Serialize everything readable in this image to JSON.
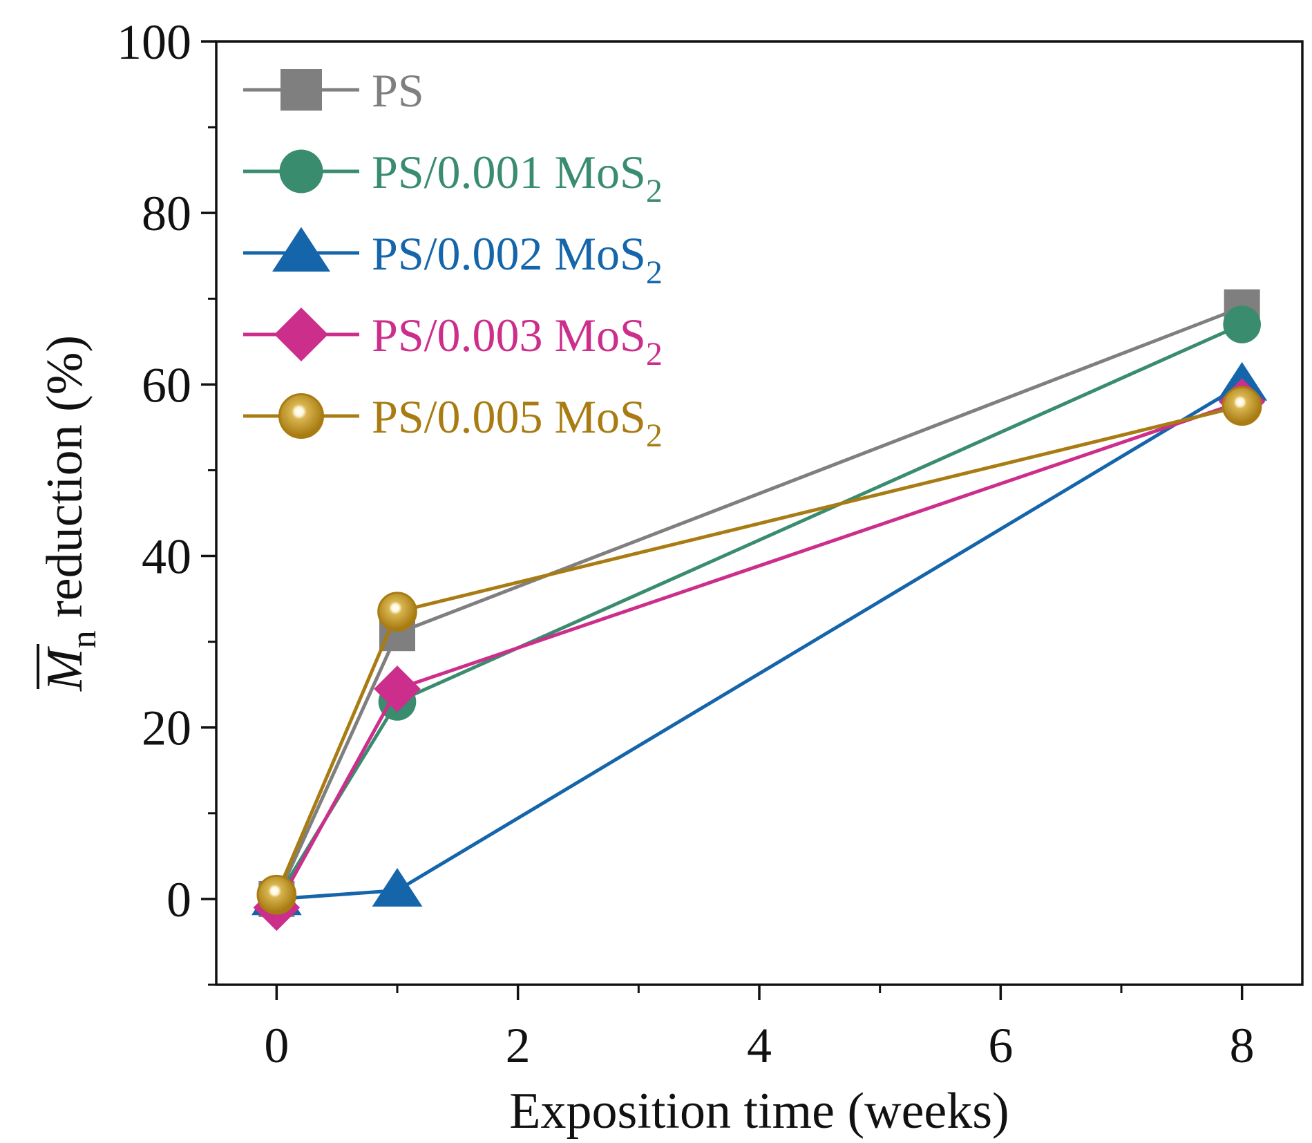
{
  "chart_data": {
    "type": "line",
    "title": "",
    "xlabel": "Exposition time (weeks)",
    "ylabel": {
      "symbol": "M",
      "subscript": "n",
      "suffix": " reduction (%)"
    },
    "xlim": [
      -0.5,
      8.5
    ],
    "ylim": [
      -10,
      100
    ],
    "x_ticks": [
      0,
      2,
      4,
      6,
      8
    ],
    "x_minor_ticks": [
      1,
      3,
      5,
      7
    ],
    "y_ticks": [
      0,
      20,
      40,
      60,
      80,
      100
    ],
    "y_minor_ticks": [
      -10,
      10,
      30,
      50,
      70,
      90
    ],
    "legend_position": "top-left",
    "x": [
      0,
      1,
      8
    ],
    "series": [
      {
        "name": "PS",
        "label_main": "PS",
        "label_sub": "",
        "color": "#7f7f7f",
        "marker": "square",
        "values": [
          0,
          31,
          69
        ]
      },
      {
        "name": "PS/0.001 MoS2",
        "label_main": "PS/0.001 MoS",
        "label_sub": "2",
        "color": "#3a8c6e",
        "marker": "circle",
        "values": [
          0,
          23,
          67
        ]
      },
      {
        "name": "PS/0.002 MoS2",
        "label_main": "PS/0.002 MoS",
        "label_sub": "2",
        "color": "#1565aa",
        "marker": "triangle",
        "values": [
          0,
          1,
          60
        ]
      },
      {
        "name": "PS/0.003 MoS2",
        "label_main": "PS/0.003 MoS",
        "label_sub": "2",
        "color": "#cc2e8c",
        "marker": "diamond",
        "values": [
          -1,
          24.5,
          58
        ]
      },
      {
        "name": "PS/0.005 MoS2",
        "label_main": "PS/0.005 MoS",
        "label_sub": "2",
        "color": "#a87c12",
        "marker": "ball",
        "values": [
          0.5,
          33.5,
          57.5
        ]
      }
    ]
  }
}
